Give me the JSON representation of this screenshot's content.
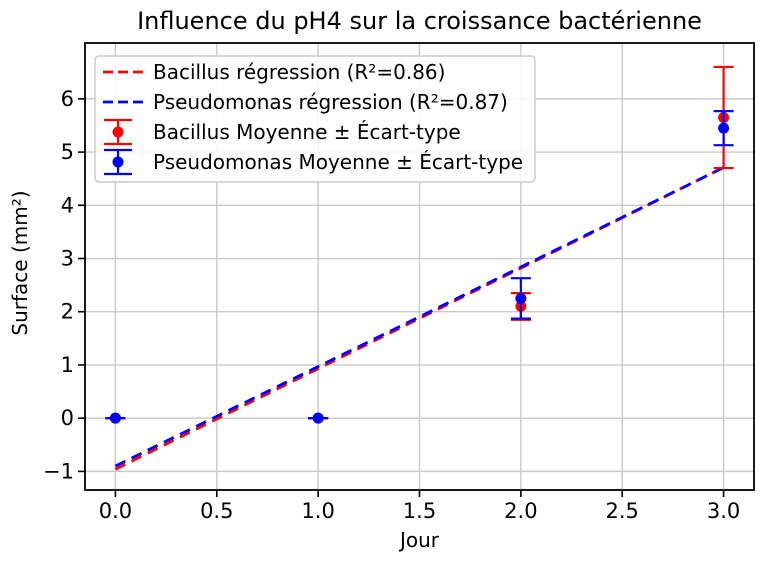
{
  "chart_data": {
    "type": "scatter",
    "title": "Influence du pH4 sur la croissance bactérienne",
    "xlabel": "Jour",
    "ylabel": "Surface (mm²)",
    "xlim": [
      -0.15,
      3.15
    ],
    "ylim": [
      -1.35,
      7.05
    ],
    "grid": true,
    "grid_color": "#c9c9c9",
    "axis_color": "#000000",
    "background_color": "#ffffff",
    "xticks": {
      "values": [
        0,
        0.5,
        1,
        1.5,
        2,
        2.5,
        3
      ],
      "labels": [
        "0.0",
        "0.5",
        "1.0",
        "1.5",
        "2.0",
        "2.5",
        "3.0"
      ]
    },
    "yticks": {
      "values": [
        -1,
        0,
        1,
        2,
        3,
        4,
        5,
        6
      ],
      "labels": [
        "−1",
        "0",
        "1",
        "2",
        "3",
        "4",
        "5",
        "6"
      ]
    },
    "series": [
      {
        "name": "bacillus",
        "legend_label": "Bacillus Moyenne ± Écart-type",
        "color": "#ff0000",
        "x": [
          0,
          1,
          2,
          3
        ],
        "mean": [
          0,
          0,
          2.1,
          5.65
        ],
        "std": [
          0,
          0,
          0.25,
          0.95
        ]
      },
      {
        "name": "pseudomonas",
        "legend_label": "Pseudomonas Moyenne ± Écart-type",
        "color": "#0000ff",
        "x": [
          0,
          1,
          2,
          3
        ],
        "mean": [
          0,
          0,
          2.25,
          5.45
        ],
        "std": [
          0,
          0,
          0.38,
          0.32
        ]
      }
    ],
    "regressions": [
      {
        "name": "bacillus",
        "legend_label": "Bacillus régression (R²=0.86)",
        "color": "#ff0000",
        "slope": 1.89,
        "intercept": -0.96,
        "r2": 0.86,
        "x_range": [
          0,
          3
        ]
      },
      {
        "name": "pseudomonas",
        "legend_label": "Pseudomonas régression (R²=0.87)",
        "color": "#0000ff",
        "slope": 1.87,
        "intercept": -0.9,
        "r2": 0.87,
        "x_range": [
          0,
          3
        ]
      }
    ],
    "legend": {
      "position": "upper left",
      "entries": [
        {
          "type": "dashed-line",
          "color": "#ff0000",
          "label": "Bacillus régression (R²=0.86)"
        },
        {
          "type": "dashed-line",
          "color": "#0000ff",
          "label": "Pseudomonas régression (R²=0.87)"
        },
        {
          "type": "errorbar-marker",
          "color": "#ff0000",
          "label": "Bacillus Moyenne ± Écart-type"
        },
        {
          "type": "errorbar-marker",
          "color": "#0000ff",
          "label": "Pseudomonas Moyenne ± Écart-type"
        }
      ]
    }
  }
}
